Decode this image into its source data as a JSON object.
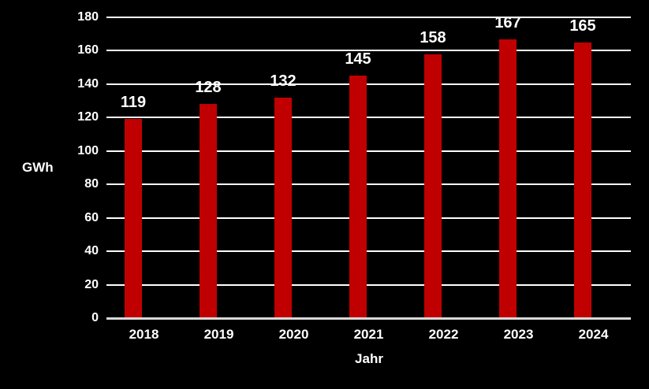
{
  "chart_data": {
    "type": "bar",
    "title": "",
    "categories": [
      "2018",
      "2019",
      "2020",
      "2021",
      "2022",
      "2023",
      "2024"
    ],
    "values": [
      119,
      128,
      132,
      145,
      158,
      167,
      165
    ],
    "xlabel": "Jahr",
    "ylabel": "GWh",
    "ylim": [
      0,
      180
    ],
    "ytick_step": 20,
    "yticks": [
      0,
      20,
      40,
      60,
      80,
      100,
      120,
      140,
      160,
      180
    ],
    "grid": true,
    "legend": false,
    "data_labels": true,
    "colors": {
      "background": "#000000",
      "bar": "#c00000",
      "gridline": "#ffffff",
      "axis_line": "#d9d9d9",
      "text": "#ffffff"
    }
  }
}
